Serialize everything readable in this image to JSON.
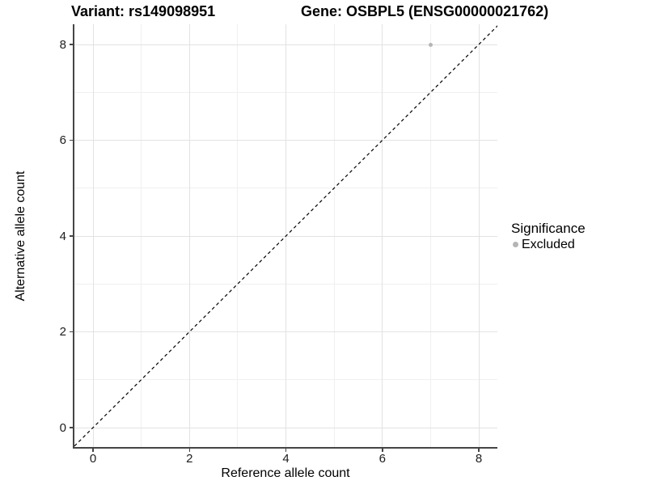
{
  "chart_data": {
    "type": "scatter",
    "title_variant": "Variant: rs149098951",
    "title_gene": "Gene: OSBPL5 (ENSG00000021762)",
    "xlabel": "Reference allele count",
    "ylabel": "Alternative allele count",
    "xlim": [
      -0.4,
      8.4
    ],
    "ylim": [
      -0.4,
      8.4
    ],
    "xticks": [
      0,
      2,
      4,
      6,
      8
    ],
    "yticks": [
      0,
      2,
      4,
      6,
      8
    ],
    "minor_ticks": [
      1,
      3,
      5,
      7
    ],
    "grid": "major-and-minor",
    "points": [
      {
        "x": 7,
        "y": 8,
        "series": "Excluded"
      }
    ],
    "reference_line": {
      "type": "abline",
      "slope": 1,
      "intercept": 0,
      "style": "dashed"
    },
    "legend": {
      "title": "Significance",
      "position": "right",
      "entries": [
        {
          "label": "Excluded",
          "color": "#b5b5b5"
        }
      ]
    },
    "colors": {
      "point": "#b5b5b5",
      "grid_major": "#e2e2e2",
      "grid_minor": "#f0f0f0",
      "axis_line": "#454545",
      "diagonal": "#000000",
      "background": "#ffffff"
    }
  }
}
